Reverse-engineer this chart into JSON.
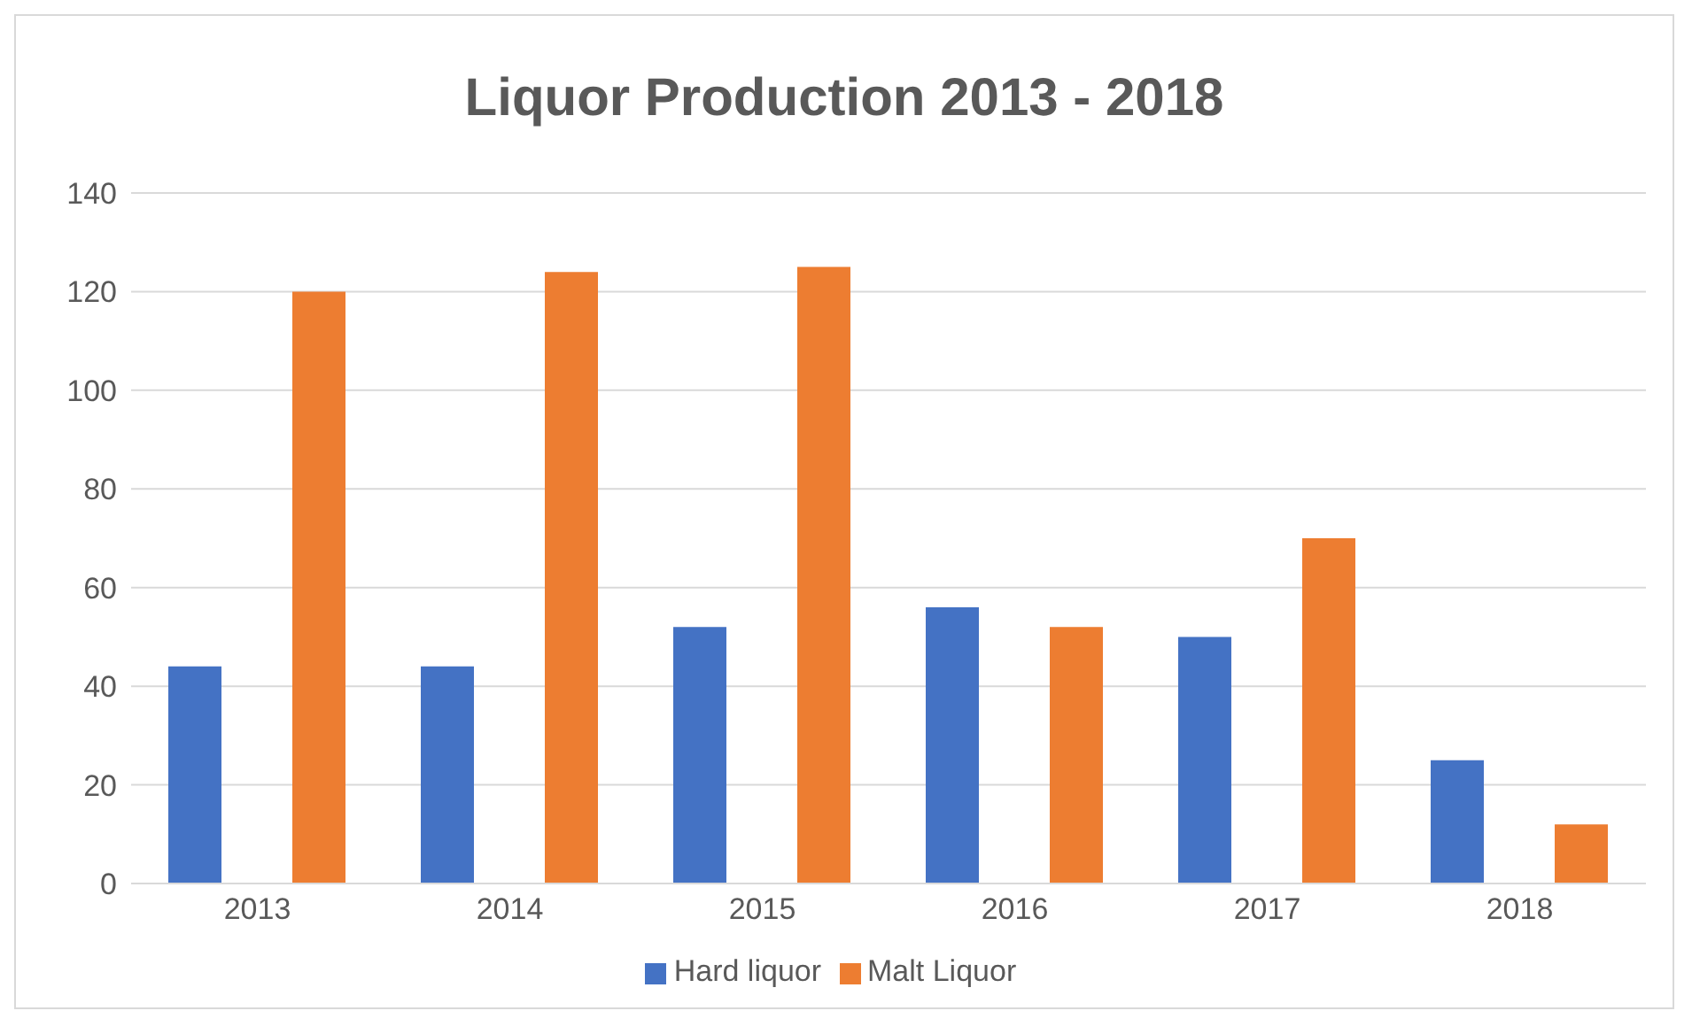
{
  "chart_data": {
    "type": "bar",
    "title": "Liquor Production 2013 - 2018",
    "categories": [
      "2013",
      "2014",
      "2015",
      "2016",
      "2017",
      "2018"
    ],
    "series": [
      {
        "name": "Hard liquor",
        "color": "#4472c4",
        "values": [
          44,
          44,
          52,
          56,
          50,
          25
        ]
      },
      {
        "name": "Malt Liquor",
        "color": "#ed7d31",
        "values": [
          120,
          124,
          125,
          52,
          70,
          12
        ]
      }
    ],
    "ylim": [
      0,
      140
    ],
    "yticks": [
      0,
      20,
      40,
      60,
      80,
      100,
      120,
      140
    ],
    "grid": "y",
    "legend": "bottom"
  }
}
